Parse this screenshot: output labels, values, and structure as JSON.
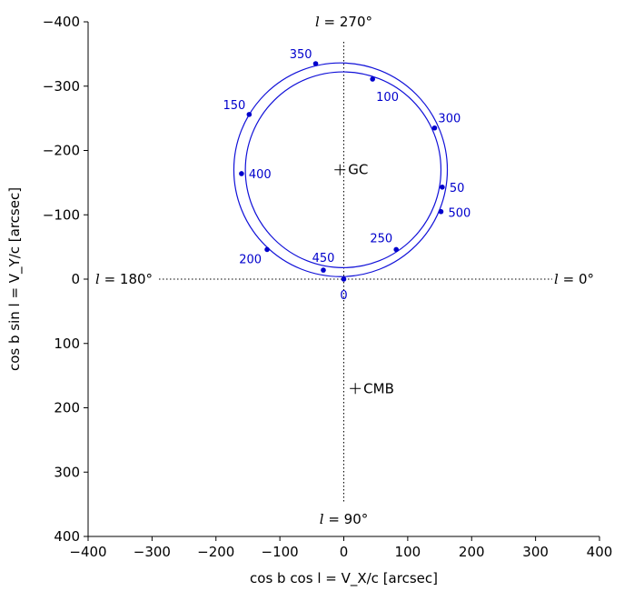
{
  "chart_data": {
    "type": "line",
    "xlabel": "cos b cos l = V_X/c [arcsec]",
    "ylabel": "cos b sin l = V_Y/c [arcsec]",
    "xlim": [
      -400,
      400
    ],
    "ylim": [
      400,
      -400
    ],
    "y_axis_inverted": true,
    "x_ticks": [
      "−400",
      "−300",
      "−200",
      "−100",
      "0",
      "100",
      "200",
      "300",
      "400"
    ],
    "y_ticks": [
      "−400",
      "−300",
      "−200",
      "−100",
      "0",
      "100",
      "200",
      "300",
      "400"
    ],
    "grid": false,
    "colors": {
      "curve": "#1010d8",
      "points": "#0000cc",
      "axes": "#000000"
    },
    "series": [
      {
        "center": [
          -1,
          -170
        ],
        "radius": 153,
        "points": [
          {
            "label": "0",
            "x": 0,
            "y": 0
          },
          {
            "label": "50",
            "x": 154,
            "y": -143
          },
          {
            "label": "100",
            "x": 45,
            "y": -311
          },
          {
            "label": "150",
            "x": -148,
            "y": -256
          },
          {
            "label": "200",
            "x": -120,
            "y": -46
          },
          {
            "label": "250",
            "x": 82,
            "y": -46
          }
        ]
      },
      {
        "center": [
          -5,
          -170
        ],
        "radius": 167,
        "points": [
          {
            "label": "300",
            "x": 142,
            "y": -235
          },
          {
            "label": "350",
            "x": -44,
            "y": -335
          },
          {
            "label": "400",
            "x": -160,
            "y": -164
          },
          {
            "label": "450",
            "x": -32,
            "y": -14
          },
          {
            "label": "500",
            "x": 152,
            "y": -105
          }
        ]
      }
    ],
    "markers": [
      {
        "label": "GC",
        "x": -6,
        "y": -170
      },
      {
        "label": "CMB",
        "x": 18,
        "y": 170
      }
    ],
    "annotations": {
      "top": "l = 270°",
      "bottom": "l = 90°",
      "left": "l = 180°",
      "right": "l = 0°",
      "top_pre": "l",
      "top_post": " = 270°",
      "bottom_pre": "l",
      "bottom_post": " = 90°",
      "left_pre": "l",
      "left_post": " = 180°",
      "right_pre": "l",
      "right_post": " = 0°"
    }
  }
}
